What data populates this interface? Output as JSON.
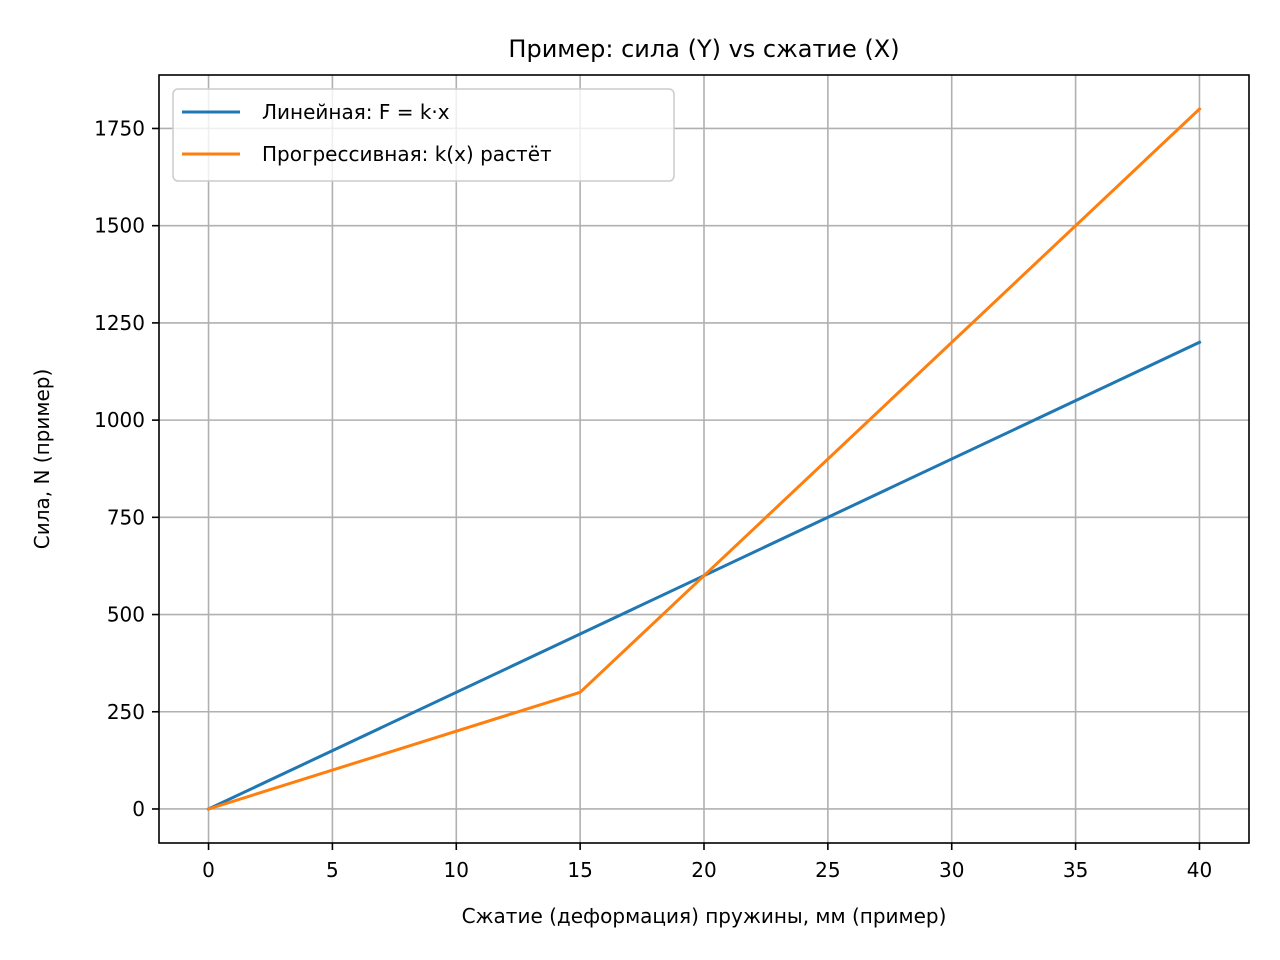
{
  "chart_data": {
    "type": "line",
    "title": "Пример: сила (Y) vs сжатие (X)",
    "xlabel": "Сжатие (деформация) пружины, мм (пример)",
    "ylabel": "Сила, N (пример)",
    "xlim": [
      -2,
      42
    ],
    "ylim": [
      -87.5,
      1887.5
    ],
    "xticks": [
      0,
      5,
      10,
      15,
      20,
      25,
      30,
      35,
      40
    ],
    "xtick_labels": [
      "0",
      "5",
      "10",
      "15",
      "20",
      "25",
      "30",
      "35",
      "40"
    ],
    "yticks": [
      0,
      250,
      500,
      750,
      1000,
      1250,
      1500,
      1750
    ],
    "ytick_labels": [
      "0",
      "250",
      "500",
      "750",
      "1000",
      "1250",
      "1500",
      "1750"
    ],
    "grid": true,
    "legend_position": "upper left",
    "series": [
      {
        "name": "Линейная: F = k·x",
        "color": "#1f77b4",
        "x": [
          0,
          40
        ],
        "y": [
          0,
          1200
        ]
      },
      {
        "name": "Прогрессивная: k(x) растёт",
        "color": "#ff7f0e",
        "x": [
          0,
          15,
          20,
          40
        ],
        "y": [
          0,
          300,
          600,
          1800
        ]
      }
    ]
  }
}
